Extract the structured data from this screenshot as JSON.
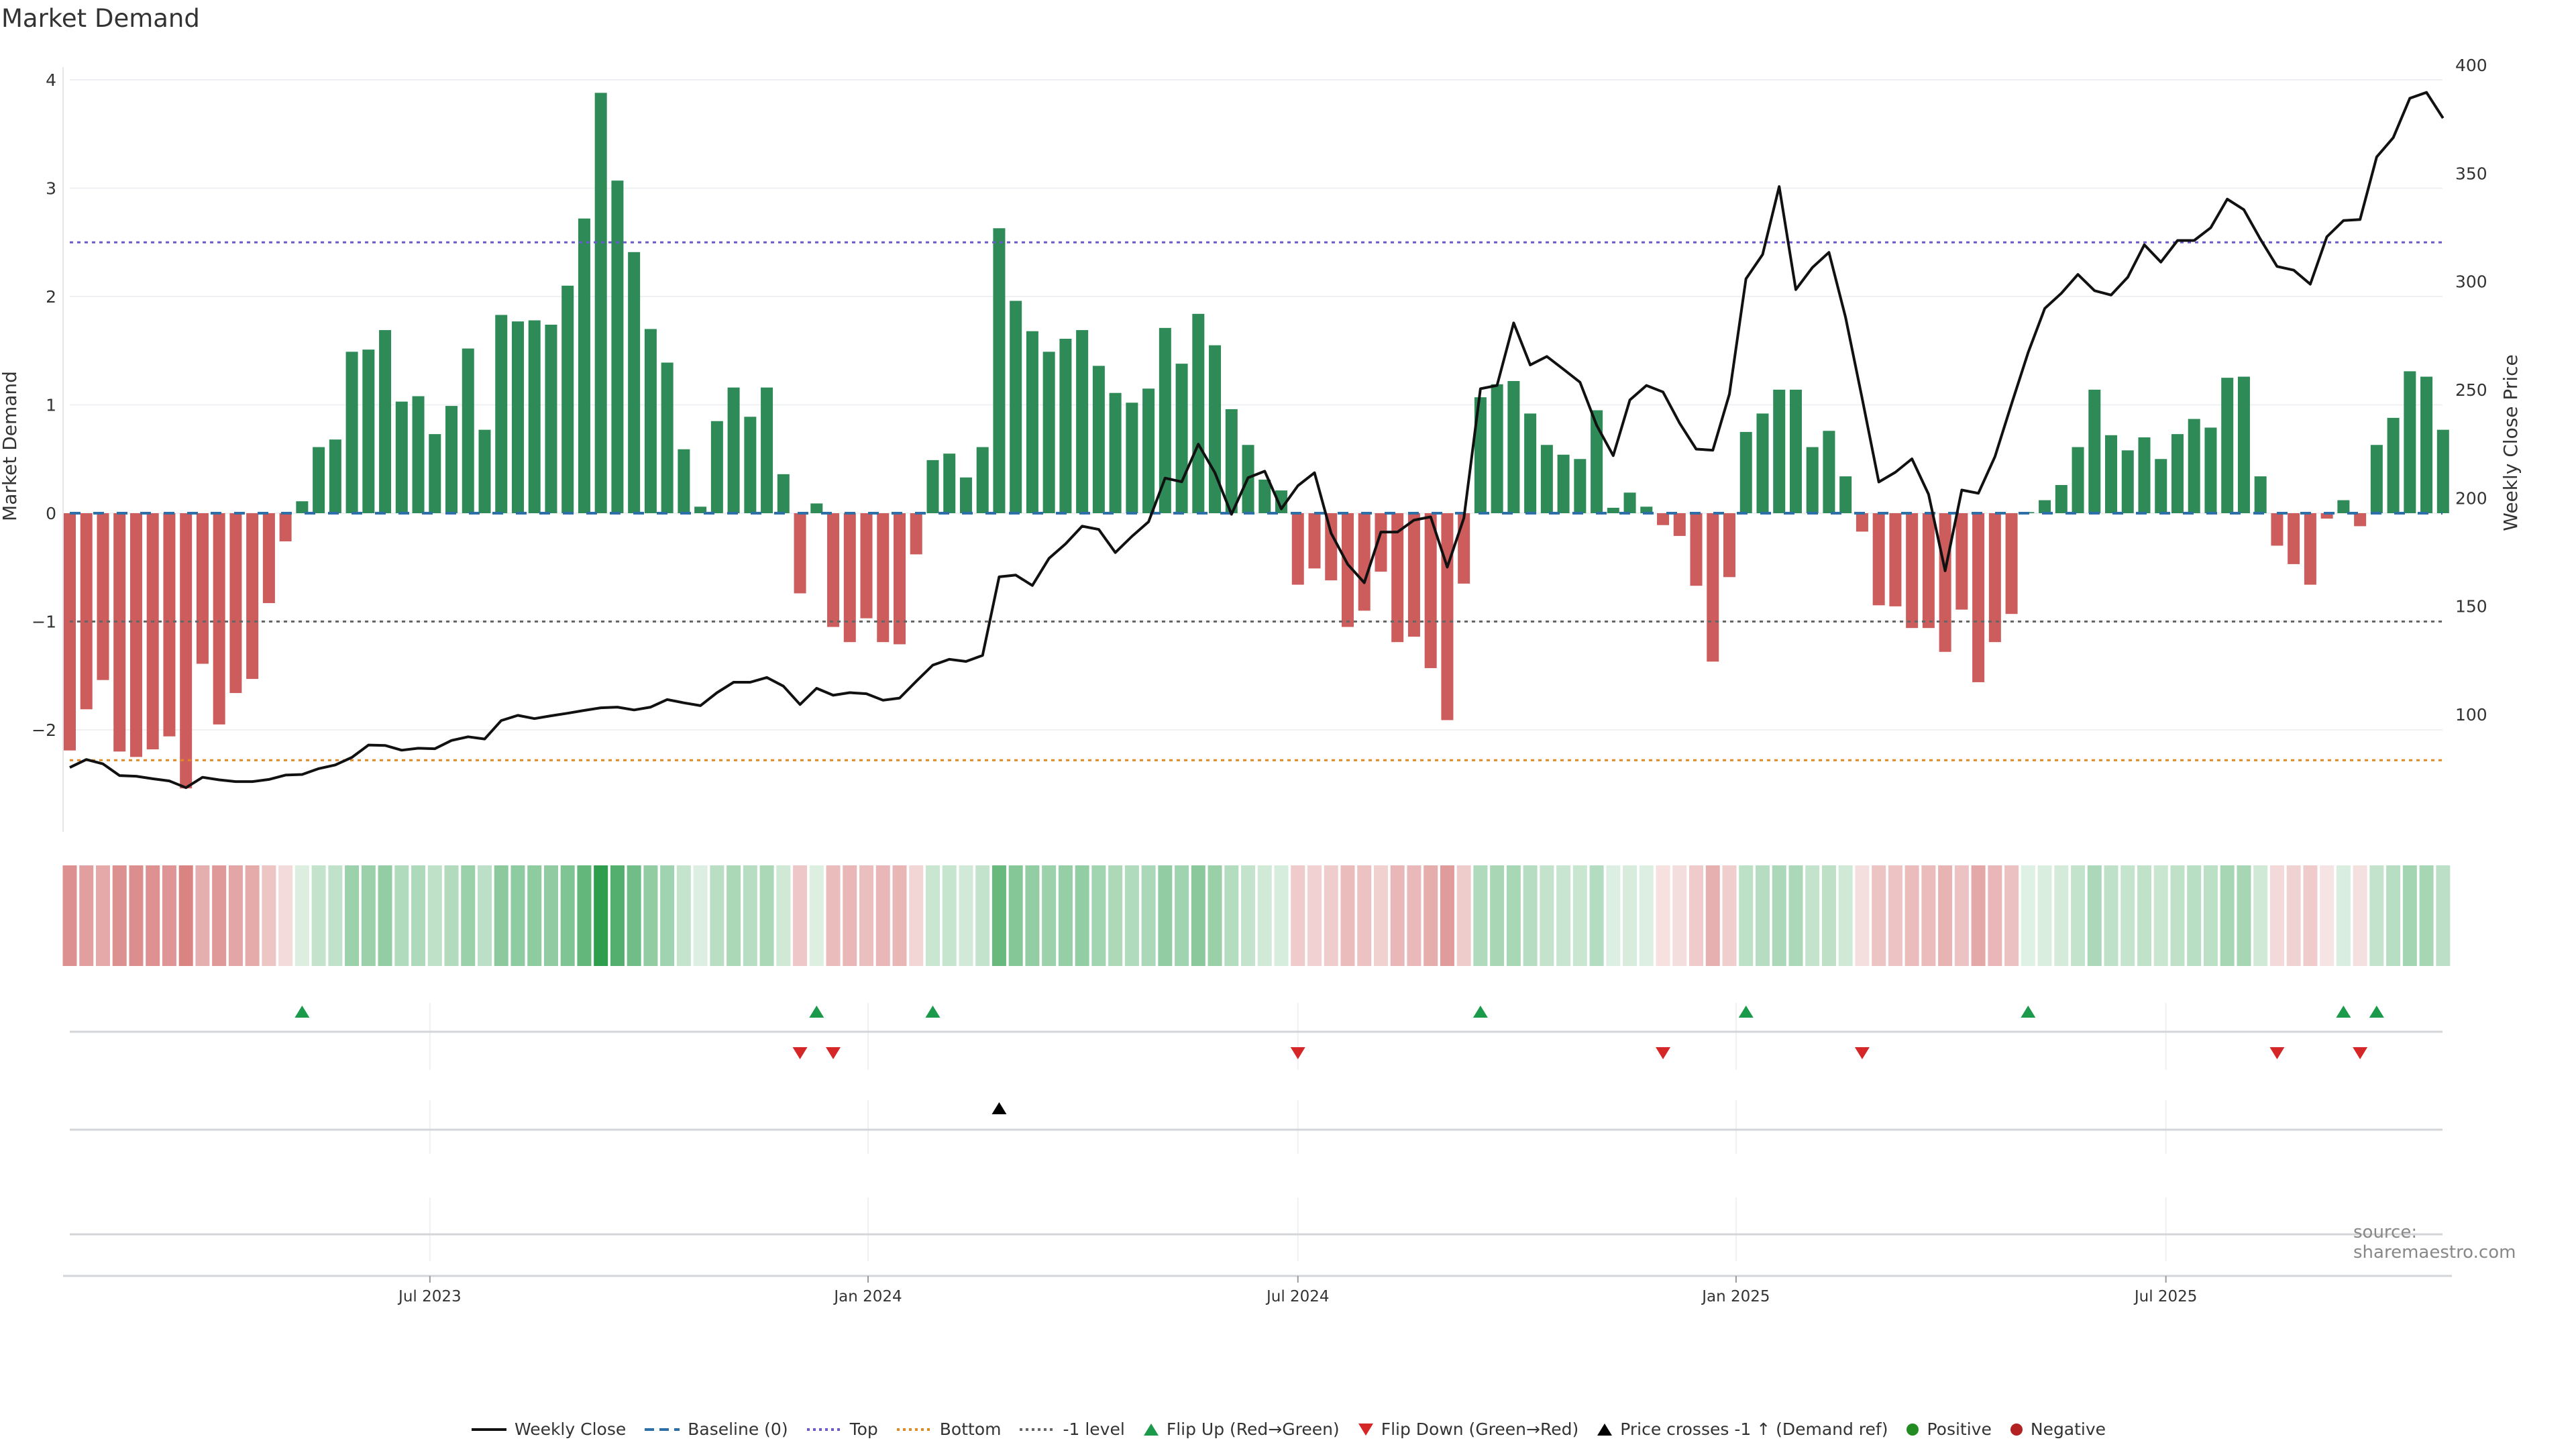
{
  "title": "Market Demand",
  "source": "source: sharemaestro.com",
  "colors": {
    "positive_bar": "#2e8b57",
    "negative_bar": "#cd5c5c",
    "heat_positive": "#2e9e4e",
    "heat_negative": "#c94f4f",
    "baseline": "#2f6fa8",
    "top": "#6a5acd",
    "bottom": "#df8a25",
    "minus_one": "#666666",
    "flip_up": "#1a9a4a",
    "flip_down": "#d62728",
    "price": "#111111",
    "positive_dot": "#228b22",
    "negative_dot": "#b22222"
  },
  "chart_data": {
    "type": "bar",
    "title": "Market Demand",
    "ylabel": "Market Demand",
    "y2label": "Weekly Close Price",
    "ylim": [
      -2.9,
      4.2
    ],
    "y2lim": [
      70,
      405
    ],
    "yticks": [
      4,
      3,
      2,
      1,
      0,
      -1,
      -2
    ],
    "ytick_labels": [
      "4",
      "3",
      "2",
      "1",
      "0",
      "−1",
      "−2"
    ],
    "y2ticks": [
      400,
      350,
      300,
      250,
      200,
      150,
      100
    ],
    "y2tick_labels": [
      "400",
      "350",
      "300",
      "250",
      "200",
      "150",
      "100"
    ],
    "xticks": [
      {
        "week_index": 21.7,
        "label": "Jul 2023"
      },
      {
        "week_index": 48.1,
        "label": "Jan 2024"
      },
      {
        "week_index": 74.0,
        "label": "Jul 2024"
      },
      {
        "week_index": 100.4,
        "label": "Jan 2025"
      },
      {
        "week_index": 126.3,
        "label": "Jul 2025"
      }
    ],
    "reference_lines": {
      "baseline": 0,
      "top": 2.5,
      "bottom": -2.28,
      "minus_one": -1
    },
    "demand": [
      -2.19,
      -1.81,
      -1.54,
      -2.2,
      -2.25,
      -2.18,
      -2.06,
      -2.54,
      -1.39,
      -1.95,
      -1.66,
      -1.53,
      -0.83,
      -0.26,
      0.11,
      0.61,
      0.68,
      1.49,
      1.51,
      1.69,
      1.03,
      1.08,
      0.73,
      0.99,
      1.52,
      0.77,
      1.83,
      1.77,
      1.78,
      1.74,
      2.1,
      2.72,
      3.88,
      3.07,
      2.41,
      1.7,
      1.39,
      0.59,
      0.06,
      0.85,
      1.16,
      0.89,
      1.16,
      0.36,
      -0.74,
      0.09,
      -1.05,
      -1.19,
      -0.97,
      -1.19,
      -1.21,
      -0.38,
      0.49,
      0.55,
      0.33,
      0.61,
      2.63,
      1.96,
      1.68,
      1.49,
      1.61,
      1.69,
      1.36,
      1.11,
      1.02,
      1.15,
      1.71,
      1.38,
      1.84,
      1.55,
      0.96,
      0.63,
      0.31,
      0.21,
      -0.66,
      -0.51,
      -0.62,
      -1.05,
      -0.9,
      -0.54,
      -1.19,
      -1.14,
      -1.43,
      -1.91,
      -0.65,
      1.07,
      1.19,
      1.22,
      0.92,
      0.63,
      0.54,
      0.5,
      0.95,
      0.05,
      0.19,
      0.06,
      -0.11,
      -0.21,
      -0.67,
      -1.37,
      -0.59,
      0.75,
      0.92,
      1.14,
      1.14,
      0.61,
      0.76,
      0.34,
      -0.17,
      -0.85,
      -0.86,
      -1.06,
      -1.06,
      -1.28,
      -0.89,
      -1.56,
      -1.19,
      -0.93,
      0.01,
      0.12,
      0.26,
      0.61,
      1.14,
      0.72,
      0.58,
      0.7,
      0.5,
      0.73,
      0.87,
      0.79,
      1.25,
      1.26,
      0.34,
      -0.3,
      -0.47,
      -0.66,
      -0.05,
      0.12,
      -0.12,
      0.63,
      0.88,
      1.31,
      1.26,
      0.77
    ],
    "weekly_close": [
      82.6,
      86.3,
      84.3,
      78.9,
      78.6,
      77.4,
      76.4,
      73.3,
      78.1,
      76.9,
      76.1,
      76.1,
      77.1,
      79.1,
      79.4,
      82.1,
      83.8,
      87.3,
      93.0,
      92.8,
      90.6,
      91.5,
      91.3,
      95.1,
      96.8,
      95.8,
      104.3,
      106.7,
      105.2,
      106.5,
      107.7,
      109.0,
      110.2,
      110.5,
      109.2,
      110.5,
      114.0,
      112.5,
      111.2,
      117.2,
      122.0,
      122.0,
      124.2,
      120.2,
      111.7,
      119.2,
      116.0,
      117.2,
      116.7,
      113.7,
      114.7,
      122.4,
      129.9,
      132.6,
      131.6,
      134.4,
      170.7,
      171.5,
      166.7,
      179.2,
      185.9,
      194.1,
      192.6,
      181.9,
      189.4,
      196.1,
      216.3,
      214.6,
      232.0,
      218.8,
      199.6,
      216.5,
      219.5,
      202.1,
      212.8,
      218.8,
      190.9,
      176.5,
      168.0,
      191.4,
      191.4,
      196.9,
      198.4,
      175.2,
      197.9,
      257.6,
      259.1,
      288.0,
      268.6,
      272.5,
      266.6,
      260.6,
      240.7,
      226.7,
      252.4,
      259.1,
      256.1,
      241.7,
      229.7,
      229.2,
      255.1,
      308.4,
      319.6,
      351.0,
      303.4,
      313.6,
      320.6,
      290.5,
      253.1,
      214.5,
      219.0,
      225.2,
      208.8,
      173.5,
      210.8,
      209.3,
      226.2,
      250.6,
      274.3,
      294.7,
      301.7,
      310.4,
      302.9,
      300.9,
      309.1,
      324.1,
      316.1,
      326.1,
      326.1,
      332.0,
      345.2,
      340.3,
      326.6,
      314.1,
      312.4,
      305.9,
      327.8,
      335.3,
      335.8,
      364.7,
      373.6,
      391.8,
      394.5,
      382.6
    ],
    "flip_up_weeks": [
      14,
      45,
      52,
      85,
      101,
      118,
      137,
      139
    ],
    "flip_down_weeks": [
      44,
      46,
      74,
      96,
      108,
      133,
      138
    ],
    "price_cross_weeks": [
      56
    ],
    "legend_position": "bottom-center"
  },
  "legend": [
    {
      "key": "weekly_close",
      "label": "Weekly Close"
    },
    {
      "key": "baseline",
      "label": "Baseline (0)"
    },
    {
      "key": "top",
      "label": "Top"
    },
    {
      "key": "bottom",
      "label": "Bottom"
    },
    {
      "key": "minus_one",
      "label": "-1 level"
    },
    {
      "key": "flip_up",
      "label": "Flip Up (Red→Green)"
    },
    {
      "key": "flip_down",
      "label": "Flip Down (Green→Red)"
    },
    {
      "key": "price_cross",
      "label": "Price crosses -1 ↑ (Demand ref)"
    },
    {
      "key": "positive",
      "label": "Positive"
    },
    {
      "key": "negative",
      "label": "Negative"
    }
  ]
}
